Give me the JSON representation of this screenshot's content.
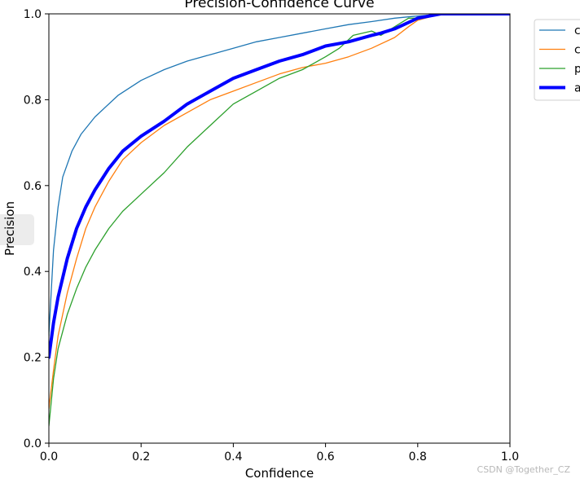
{
  "chart_data": {
    "type": "line",
    "title": "Precision-Confidence Curve",
    "xlabel": "Confidence",
    "ylabel": "Precision",
    "xlim": [
      0.0,
      1.0
    ],
    "ylim": [
      0.0,
      1.0
    ],
    "xticks": [
      "0.0",
      "0.2",
      "0.4",
      "0.6",
      "0.8",
      "1.0"
    ],
    "yticks": [
      "0.0",
      "0.2",
      "0.4",
      "0.6",
      "0.8",
      "1.0"
    ],
    "grid": false,
    "legend_position": "outside-top-right",
    "series": [
      {
        "name": "c",
        "color": "#1f77b4",
        "width": "thin",
        "x": [
          0.0,
          0.005,
          0.01,
          0.02,
          0.03,
          0.05,
          0.07,
          0.1,
          0.15,
          0.2,
          0.25,
          0.3,
          0.35,
          0.4,
          0.45,
          0.5,
          0.55,
          0.6,
          0.65,
          0.7,
          0.75,
          0.8,
          0.85,
          0.9,
          1.0
        ],
        "y": [
          0.25,
          0.35,
          0.45,
          0.55,
          0.62,
          0.68,
          0.72,
          0.76,
          0.81,
          0.845,
          0.87,
          0.89,
          0.905,
          0.92,
          0.935,
          0.945,
          0.955,
          0.965,
          0.975,
          0.982,
          0.99,
          0.995,
          0.999,
          1.0,
          1.0
        ]
      },
      {
        "name": "c",
        "color": "#ff7f0e",
        "width": "thin",
        "x": [
          0.0,
          0.01,
          0.02,
          0.04,
          0.06,
          0.08,
          0.1,
          0.13,
          0.16,
          0.2,
          0.25,
          0.3,
          0.35,
          0.4,
          0.45,
          0.5,
          0.55,
          0.6,
          0.65,
          0.7,
          0.75,
          0.78,
          0.8,
          0.85,
          0.9,
          1.0
        ],
        "y": [
          0.08,
          0.17,
          0.25,
          0.35,
          0.43,
          0.5,
          0.55,
          0.61,
          0.66,
          0.7,
          0.74,
          0.77,
          0.8,
          0.82,
          0.84,
          0.86,
          0.875,
          0.885,
          0.9,
          0.92,
          0.945,
          0.97,
          0.985,
          1.0,
          1.0,
          1.0
        ]
      },
      {
        "name": "p",
        "color": "#2ca02c",
        "width": "thin",
        "x": [
          0.0,
          0.01,
          0.02,
          0.04,
          0.06,
          0.08,
          0.1,
          0.13,
          0.16,
          0.2,
          0.25,
          0.3,
          0.35,
          0.4,
          0.45,
          0.5,
          0.55,
          0.6,
          0.63,
          0.66,
          0.7,
          0.72,
          0.75,
          0.78,
          0.8,
          0.85,
          0.9,
          1.0
        ],
        "y": [
          0.04,
          0.15,
          0.22,
          0.3,
          0.36,
          0.41,
          0.45,
          0.5,
          0.54,
          0.58,
          0.63,
          0.69,
          0.74,
          0.79,
          0.82,
          0.85,
          0.87,
          0.9,
          0.92,
          0.95,
          0.96,
          0.95,
          0.97,
          0.99,
          0.99,
          1.0,
          1.0,
          1.0
        ]
      },
      {
        "name": "a",
        "color": "#0000ff",
        "width": "thick",
        "x": [
          0.0,
          0.01,
          0.02,
          0.04,
          0.06,
          0.08,
          0.1,
          0.13,
          0.16,
          0.2,
          0.25,
          0.3,
          0.35,
          0.4,
          0.45,
          0.5,
          0.55,
          0.6,
          0.65,
          0.7,
          0.72,
          0.75,
          0.8,
          0.85,
          0.9,
          1.0
        ],
        "y": [
          0.2,
          0.28,
          0.34,
          0.43,
          0.5,
          0.55,
          0.59,
          0.64,
          0.68,
          0.715,
          0.75,
          0.79,
          0.82,
          0.85,
          0.87,
          0.89,
          0.905,
          0.925,
          0.935,
          0.95,
          0.955,
          0.965,
          0.99,
          1.0,
          1.0,
          1.0
        ]
      }
    ]
  },
  "watermark": "CSDN @Together_CZ"
}
